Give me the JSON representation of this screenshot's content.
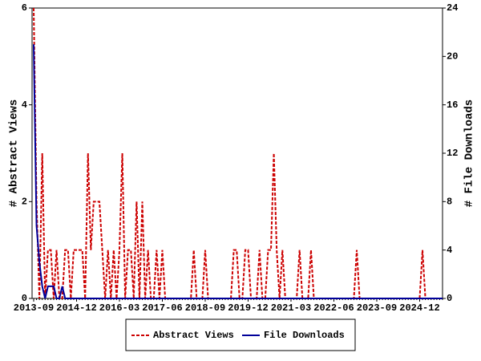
{
  "chart_data": {
    "type": "line",
    "categories": [
      "2013-09",
      null,
      null,
      null,
      null,
      null,
      null,
      null,
      null,
      null,
      null,
      null,
      null,
      null,
      null,
      "2014-12",
      null,
      null,
      null,
      null,
      null,
      null,
      null,
      null,
      null,
      null,
      null,
      null,
      null,
      null,
      "2016-03",
      null,
      null,
      null,
      null,
      null,
      null,
      null,
      null,
      null,
      null,
      null,
      null,
      null,
      null,
      "2017-06",
      null,
      null,
      null,
      null,
      null,
      null,
      null,
      null,
      null,
      null,
      null,
      null,
      null,
      null,
      "2018-09",
      null,
      null,
      null,
      null,
      null,
      null,
      null,
      null,
      null,
      null,
      null,
      null,
      null,
      null,
      "2019-12",
      null,
      null,
      null,
      null,
      null,
      null,
      null,
      null,
      null,
      null,
      null,
      null,
      null,
      null,
      "2021-03",
      null,
      null,
      null,
      null,
      null,
      null,
      null,
      null,
      null,
      null,
      null,
      null,
      null,
      null,
      "2022-06",
      null,
      null,
      null,
      null,
      null,
      null,
      null,
      null,
      null,
      null,
      null,
      null,
      null,
      null,
      "2023-09",
      null,
      null,
      null,
      null,
      null,
      null,
      null,
      null,
      null,
      null,
      null,
      null,
      null,
      null,
      "2024-12",
      null,
      null,
      null,
      null,
      null,
      null,
      null,
      null
    ],
    "ylabel": "# Abstract Views",
    "y2label": "# File Downloads",
    "ylim": [
      0,
      6
    ],
    "yticks": [
      0,
      2,
      4,
      6
    ],
    "y2lim": [
      0,
      24
    ],
    "y2ticks": [
      0,
      4,
      8,
      12,
      16,
      20,
      24
    ],
    "series": [
      {
        "name": "Abstract Views",
        "color": "#cc0000",
        "dashed": true,
        "values": [
          6,
          2,
          0,
          3,
          0,
          1,
          1,
          0,
          1,
          0,
          0,
          1,
          1,
          0,
          1,
          1,
          1,
          1,
          0,
          3,
          1,
          2,
          2,
          2,
          1,
          0,
          1,
          0,
          1,
          0,
          1,
          3,
          0,
          1,
          1,
          0,
          2,
          0,
          2,
          0,
          1,
          0,
          0,
          1,
          0,
          1,
          0,
          0,
          0,
          0,
          0,
          0,
          0,
          0,
          0,
          0,
          1,
          0,
          0,
          0,
          1,
          0,
          0,
          0,
          0,
          0,
          0,
          0,
          0,
          0,
          1,
          1,
          0,
          0,
          1,
          1,
          0,
          0,
          0,
          1,
          0,
          0,
          1,
          1,
          3,
          1,
          0,
          1,
          0,
          0,
          0,
          0,
          0,
          1,
          0,
          0,
          0,
          1,
          0,
          0,
          0,
          0,
          0,
          0,
          0,
          0,
          0,
          0,
          0,
          0,
          0,
          0,
          0,
          1,
          0,
          0,
          0,
          0,
          0,
          0,
          0,
          0,
          0,
          0,
          0,
          0,
          0,
          0,
          0,
          0,
          0,
          0,
          0,
          0,
          0,
          0,
          1,
          0,
          0,
          0,
          0,
          0,
          0,
          0
        ]
      },
      {
        "name": "File Downloads",
        "color": "#000099",
        "dashed": false,
        "axis": "y2",
        "values": [
          21,
          6,
          3,
          1,
          0,
          1,
          1,
          1,
          0,
          0,
          1,
          0,
          0,
          0,
          0,
          0,
          0,
          0,
          0,
          0,
          0,
          0,
          0,
          0,
          0,
          0,
          0,
          0,
          0,
          0,
          0,
          0,
          0,
          0,
          0,
          0,
          0,
          0,
          0,
          0,
          0,
          0,
          0,
          0,
          0,
          0,
          0,
          0,
          0,
          0,
          0,
          0,
          0,
          0,
          0,
          0,
          0,
          0,
          0,
          0,
          0,
          0,
          0,
          0,
          0,
          0,
          0,
          0,
          0,
          0,
          0,
          0,
          0,
          0,
          0,
          0,
          0,
          0,
          0,
          0,
          0,
          0,
          0,
          0,
          0,
          0,
          0,
          0,
          0,
          0,
          0,
          0,
          0,
          0,
          0,
          0,
          0,
          0,
          0,
          0,
          0,
          0,
          0,
          0,
          0,
          0,
          0,
          0,
          0,
          0,
          0,
          0,
          0,
          0,
          0,
          0,
          0,
          0,
          0,
          0,
          0,
          0,
          0,
          0,
          0,
          0,
          0,
          0,
          0,
          0,
          0,
          0,
          0,
          0,
          0,
          0,
          0,
          0,
          0,
          0,
          0,
          0,
          0,
          0
        ]
      }
    ]
  }
}
